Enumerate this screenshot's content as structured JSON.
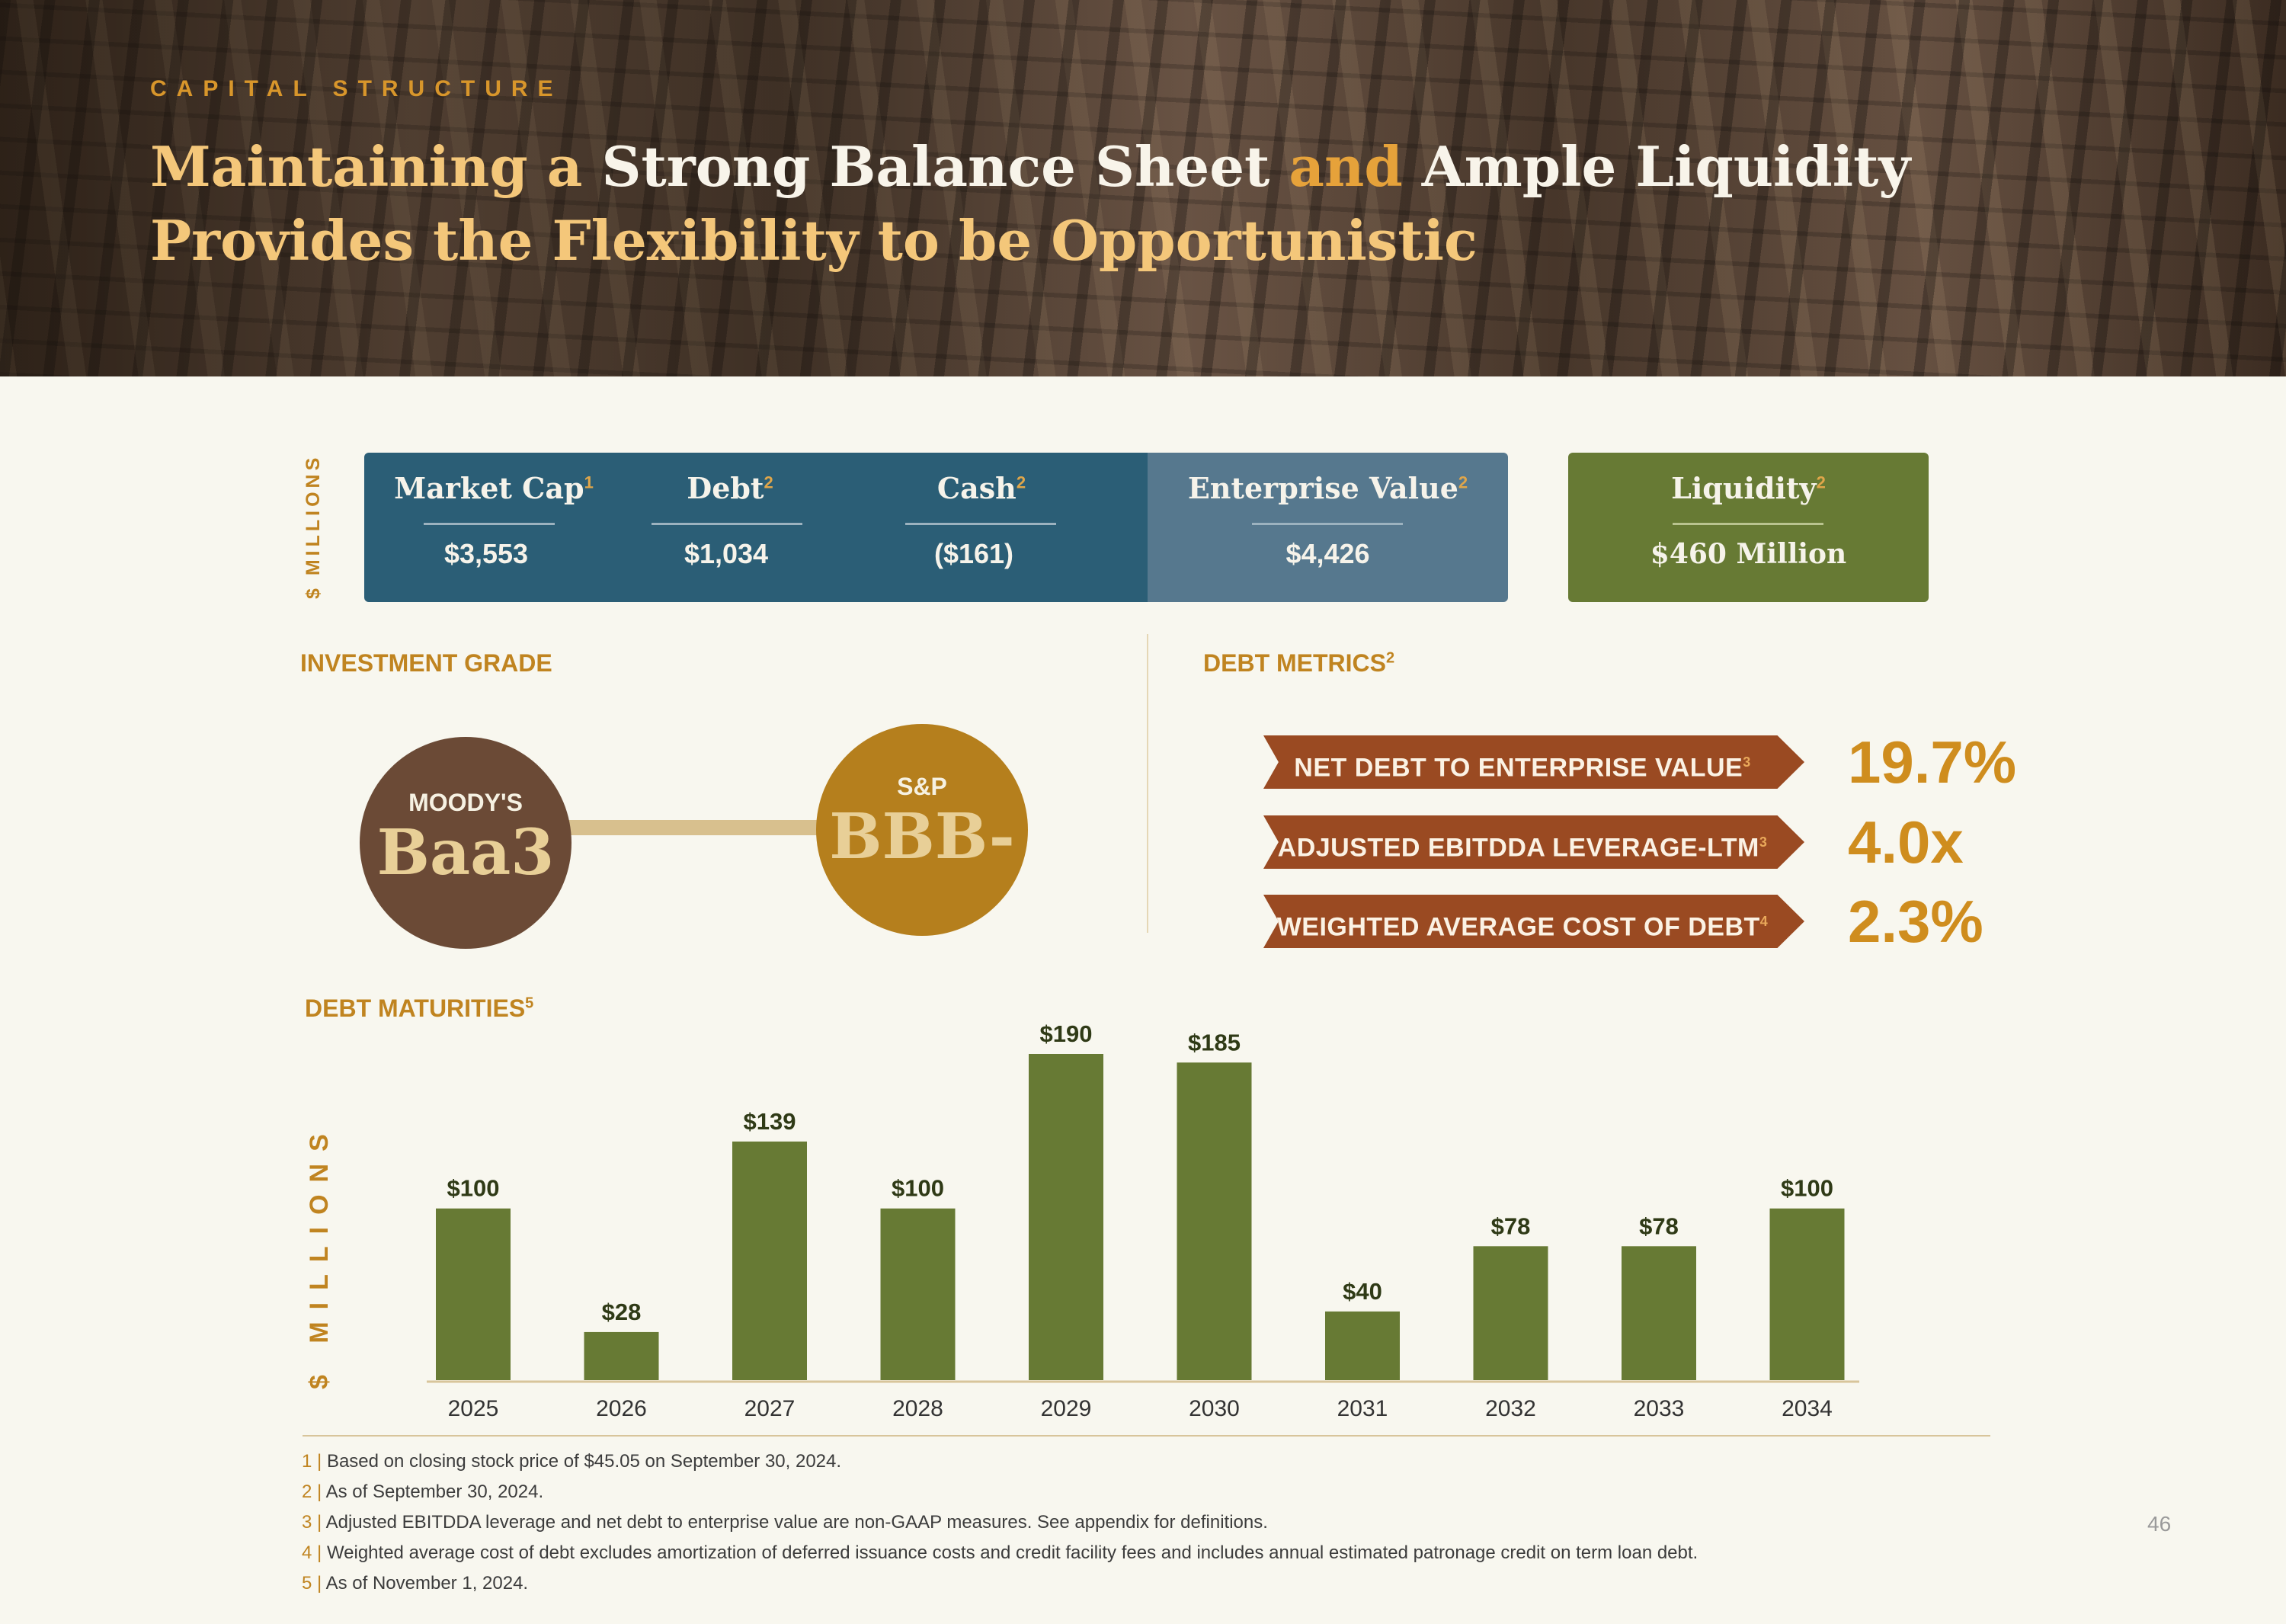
{
  "header": {
    "kicker": "CAPITAL STRUCTURE",
    "title_line1": [
      {
        "text": "Maintaining a ",
        "tone": "gold"
      },
      {
        "text": "Strong Balance Sheet ",
        "tone": "white"
      },
      {
        "text": "and ",
        "tone": "amber"
      },
      {
        "text": "Ample Liquidity",
        "tone": "white"
      }
    ],
    "title_line2": "Provides the Flexibility to be Opportunistic"
  },
  "units_label": "$ MILLIONS",
  "metrics": [
    {
      "label": "Market Cap",
      "sup": "1",
      "value": "$3,553"
    },
    {
      "label": "Debt",
      "sup": "2",
      "value": "$1,034"
    },
    {
      "label": "Cash",
      "sup": "2",
      "value": "($161)"
    },
    {
      "label": "Enterprise Value",
      "sup": "2",
      "value": "$4,426"
    },
    {
      "label": "Liquidity",
      "sup": "2",
      "value": "$460 Million"
    }
  ],
  "investment_grade": {
    "title": "INVESTMENT GRADE",
    "moodys": {
      "agency": "MOODY'S",
      "rating": "Baa3"
    },
    "sp": {
      "agency": "S&P",
      "rating": "BBB-"
    }
  },
  "debt_metrics": {
    "title": "DEBT METRICS",
    "sup": "2",
    "items": [
      {
        "label": "NET DEBT TO ENTERPRISE VALUE",
        "sup": "3",
        "value": "19.7%"
      },
      {
        "label": "ADJUSTED  EBITDDA  LEVERAGE-LTM",
        "sup": "3",
        "value": "4.0x"
      },
      {
        "label": "WEIGHTED AVERAGE COST OF DEBT",
        "sup": "4",
        "value": "2.3%"
      }
    ]
  },
  "maturities": {
    "title": "DEBT MATURITIES",
    "sup": "5"
  },
  "chart_data": {
    "type": "bar",
    "title": "DEBT MATURITIES",
    "ylabel": "$ MILLIONS",
    "categories": [
      "2025",
      "2026",
      "2027",
      "2028",
      "2029",
      "2030",
      "2031",
      "2032",
      "2033",
      "2034"
    ],
    "values": [
      100,
      28,
      139,
      100,
      190,
      185,
      40,
      78,
      78,
      100
    ],
    "data_labels": [
      "$100",
      "$28",
      "$139",
      "$100",
      "$190",
      "$185",
      "$40",
      "$78",
      "$78",
      "$100"
    ],
    "ylim": [
      0,
      190
    ],
    "grid": false,
    "bar_color": "#677a34"
  },
  "footnotes": [
    {
      "num": "1",
      "text": "Based on closing stock price of $45.05 on September 30, 2024."
    },
    {
      "num": "2",
      "text": "As of September 30, 2024."
    },
    {
      "num": "3",
      "text": "Adjusted EBITDDA leverage and net debt to enterprise value are non-GAAP measures. See appendix for definitions."
    },
    {
      "num": "4",
      "text": "Weighted average cost of debt excludes amortization of deferred issuance costs and credit facility fees and includes annual estimated patronage credit on term loan debt."
    },
    {
      "num": "5",
      "text": "As of November 1, 2024."
    }
  ],
  "page_number": "46",
  "colors": {
    "accent_gold": "#c08420",
    "navy": "#2b5e76",
    "slate": "#56788e",
    "olive": "#677a34",
    "rust": "#9a4a22"
  }
}
